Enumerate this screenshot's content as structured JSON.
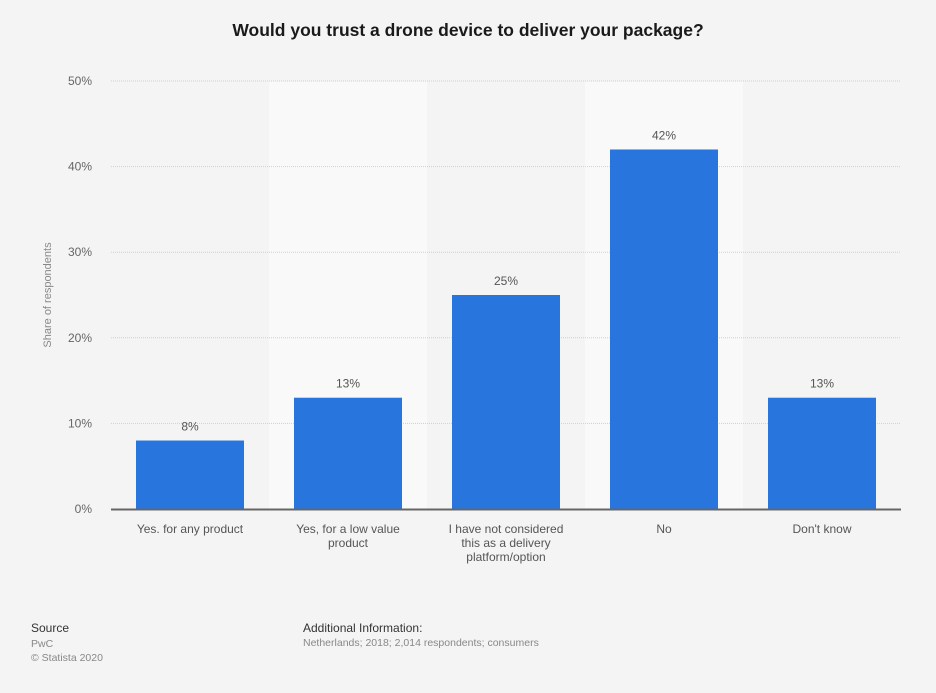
{
  "chart_data": {
    "type": "bar",
    "title": "Would you trust a drone device to deliver your package?",
    "xlabel": "",
    "ylabel": "Share of respondents",
    "ylim": [
      0,
      50
    ],
    "yticks": [
      0,
      10,
      20,
      30,
      40,
      50
    ],
    "ytick_labels": [
      "0%",
      "10%",
      "20%",
      "30%",
      "40%",
      "50%"
    ],
    "categories": [
      [
        "Yes. for any product"
      ],
      [
        "Yes, for a low value",
        "product"
      ],
      [
        "I have not considered",
        "this as a delivery",
        "platform/option"
      ],
      [
        "No"
      ],
      [
        "Don't know"
      ]
    ],
    "values": [
      8,
      13,
      25,
      42,
      13
    ],
    "data_labels": [
      "8%",
      "13%",
      "25%",
      "42%",
      "13%"
    ],
    "grid": true,
    "legend": "none",
    "colors": {
      "bar": "#2876dd",
      "band": "#f9f9f9",
      "background": "#f4f4f4"
    }
  },
  "footer": {
    "source_heading": "Source",
    "source_lines": [
      "PwC",
      "© Statista 2020"
    ],
    "additional_heading": "Additional Information:",
    "additional_text": "Netherlands; 2018; 2,014 respondents; consumers"
  }
}
